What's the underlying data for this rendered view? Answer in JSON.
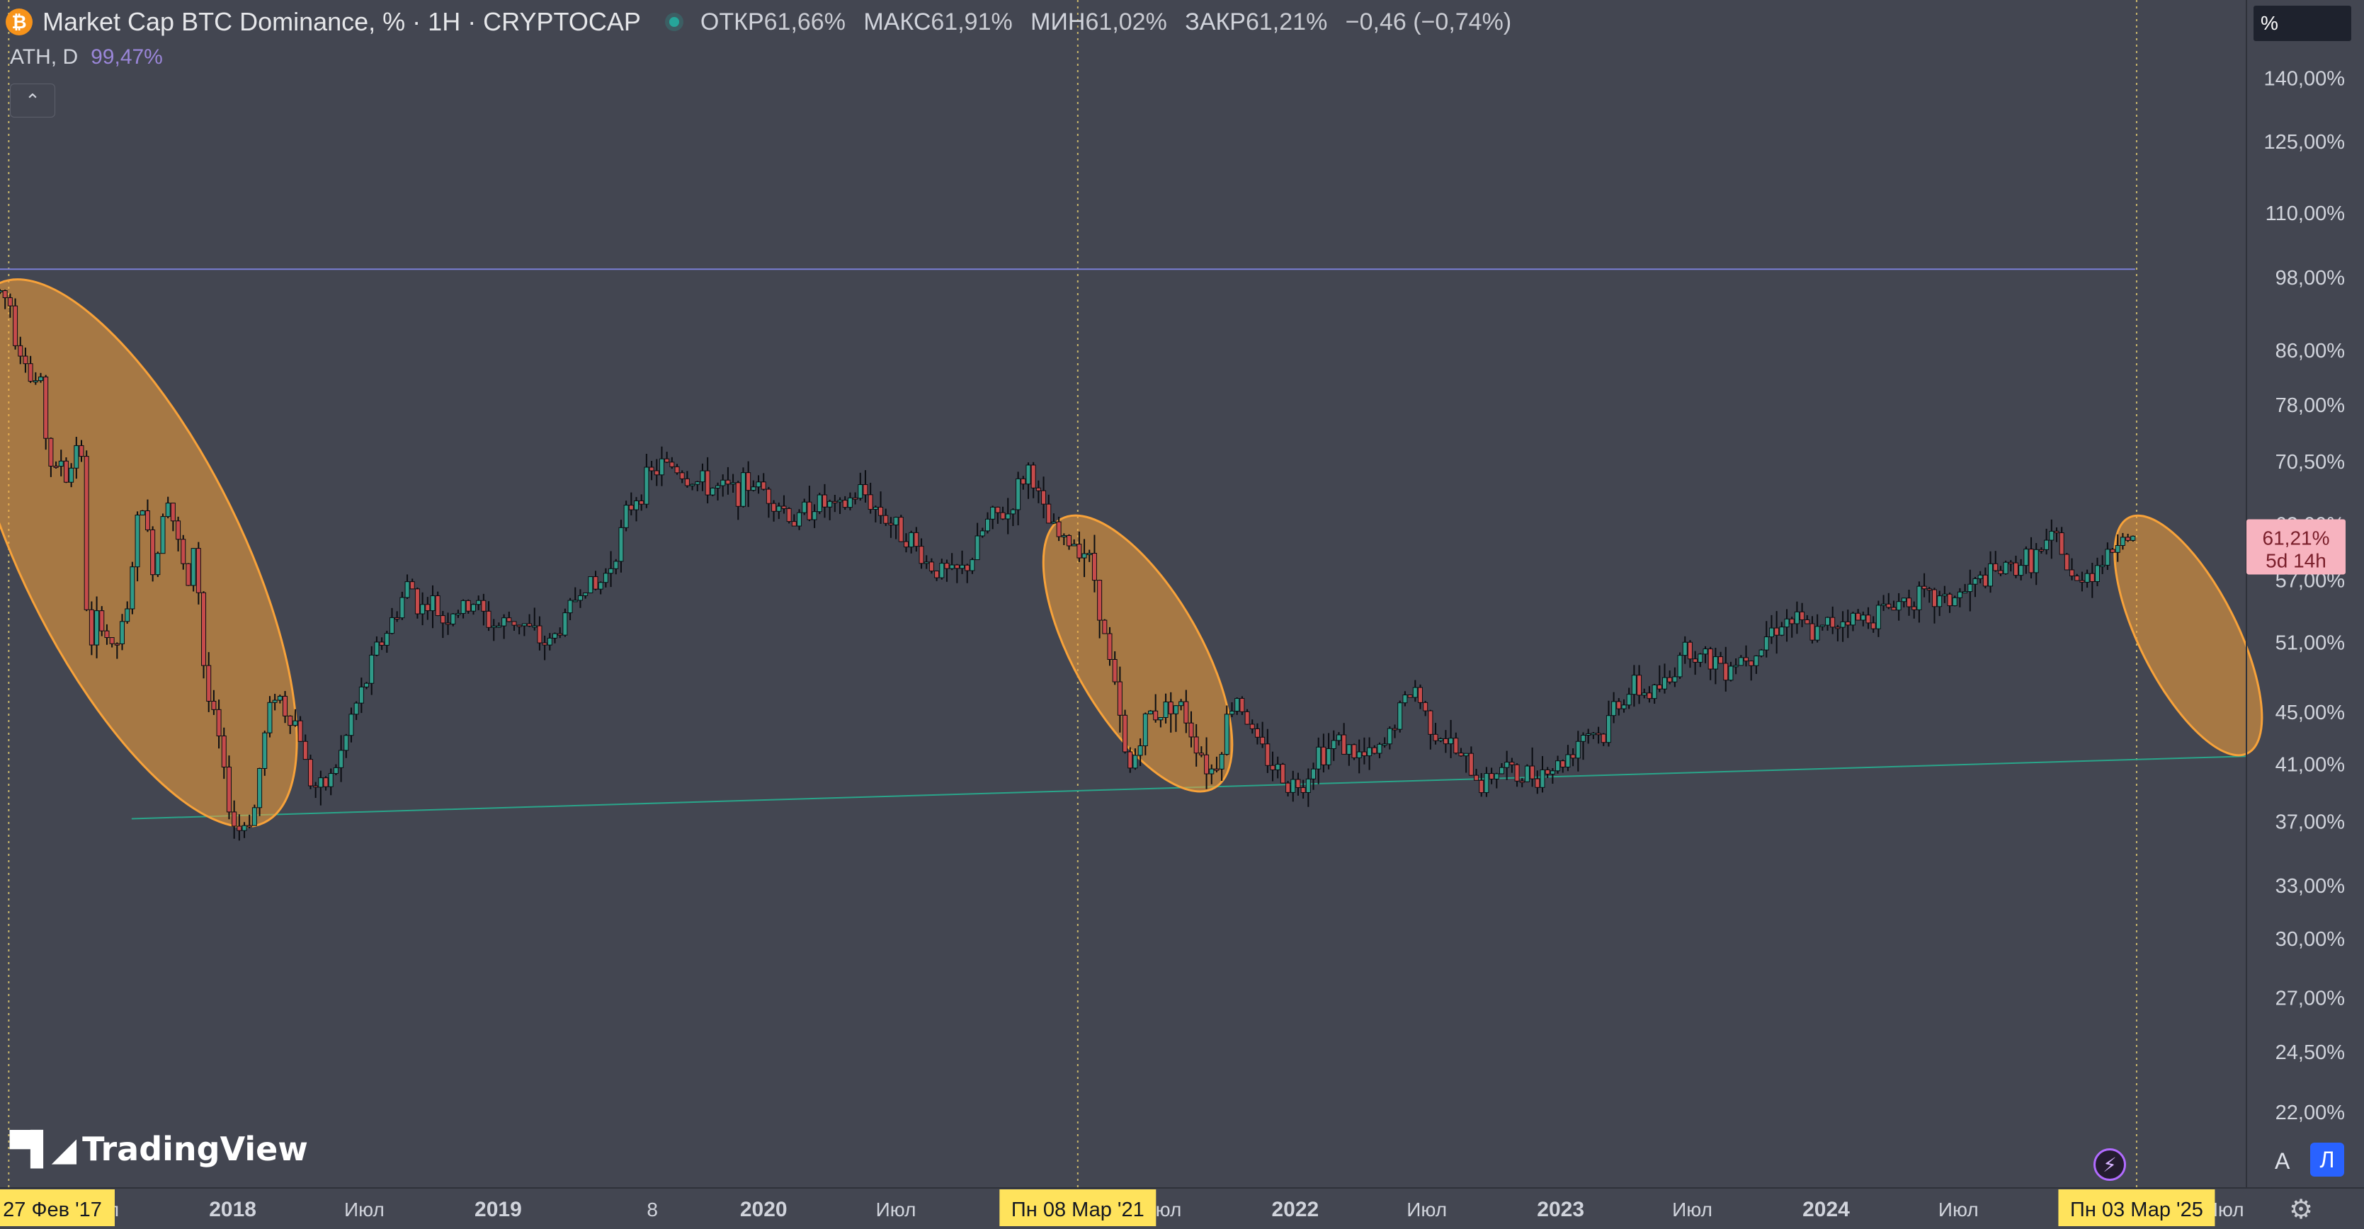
{
  "header": {
    "symbol_icon": "bitcoin-icon",
    "title": "Market Cap BTC Dominance, % · 1H · CRYPTOCAP",
    "ohlc": [
      {
        "key": "ОТКР",
        "value": "61,66%"
      },
      {
        "key": "МАКС",
        "value": "61,91%"
      },
      {
        "key": "МИН",
        "value": "61,02%"
      },
      {
        "key": "ЗАКР",
        "value": "61,21%"
      }
    ],
    "change": "−0,46 (−0,74%)",
    "indicator_label": "ATH, D",
    "indicator_value": "99,47%"
  },
  "toolbar": {
    "scale_unit": "%",
    "auto_label": "A",
    "log_label": "Л"
  },
  "logo": "TradingView",
  "colors": {
    "background": "#434651",
    "up": "#26a69a",
    "down": "#ef5350",
    "ellipse": "#f7a23a",
    "ath_line": "#7b7fd6",
    "trend_line": "#2aa58a",
    "date_highlight": "#ffe35c",
    "price_tag": "#f7b3bf"
  },
  "chart_data": {
    "type": "candlestick",
    "y_scale": "log",
    "ylim": [
      20,
      160
    ],
    "y_ticks": [
      {
        "value": 140,
        "label": "140,00%"
      },
      {
        "value": 125,
        "label": "125,00%"
      },
      {
        "value": 110,
        "label": "110,00%"
      },
      {
        "value": 98,
        "label": "98,00%"
      },
      {
        "value": 86,
        "label": "86,00%"
      },
      {
        "value": 78,
        "label": "78,00%"
      },
      {
        "value": 70.5,
        "label": "70,50%"
      },
      {
        "value": 63,
        "label": "63,00%"
      },
      {
        "value": 57,
        "label": "57,00%"
      },
      {
        "value": 51,
        "label": "51,00%"
      },
      {
        "value": 45,
        "label": "45,00%"
      },
      {
        "value": 41,
        "label": "41,00%"
      },
      {
        "value": 37,
        "label": "37,00%"
      },
      {
        "value": 33,
        "label": "33,00%"
      },
      {
        "value": 30,
        "label": "30,00%"
      },
      {
        "value": 27,
        "label": "27,00%"
      },
      {
        "value": 24.5,
        "label": "24,50%"
      },
      {
        "value": 22,
        "label": "22,00%"
      }
    ],
    "x_domain": [
      "2017-02-15",
      "2025-08-01"
    ],
    "x_ticks": [
      {
        "date": "2017-07-01",
        "label": "Июл",
        "bold": false
      },
      {
        "date": "2018-01-01",
        "label": "2018",
        "bold": true
      },
      {
        "date": "2018-07-01",
        "label": "Июл",
        "bold": false
      },
      {
        "date": "2019-01-01",
        "label": "2019",
        "bold": true
      },
      {
        "date": "2019-08-01",
        "label": "8",
        "bold": false
      },
      {
        "date": "2020-01-01",
        "label": "2020",
        "bold": true
      },
      {
        "date": "2020-07-01",
        "label": "Июл",
        "bold": false
      },
      {
        "date": "2021-07-01",
        "label": "Июл",
        "bold": false
      },
      {
        "date": "2022-01-01",
        "label": "2022",
        "bold": true
      },
      {
        "date": "2022-07-01",
        "label": "Июл",
        "bold": false
      },
      {
        "date": "2023-01-01",
        "label": "2023",
        "bold": true
      },
      {
        "date": "2023-07-01",
        "label": "Июл",
        "bold": false
      },
      {
        "date": "2024-01-01",
        "label": "2024",
        "bold": true
      },
      {
        "date": "2024-07-01",
        "label": "Июл",
        "bold": false
      },
      {
        "date": "2025-07-01",
        "label": "Июл",
        "bold": false
      }
    ],
    "markers": [
      {
        "date": "2017-02-27",
        "label": "27 Фев '17"
      },
      {
        "date": "2021-03-08",
        "label": "Пн 08 Мар '21"
      },
      {
        "date": "2025-03-03",
        "label": "Пн 03 Мар '25"
      }
    ],
    "price_tag": {
      "value": 61.21,
      "label": "61,21%",
      "countdown": "5d 14h"
    },
    "ath_line": {
      "value": 99.47,
      "from": "2017-02-15",
      "to": "2025-03-01"
    },
    "trend_line": {
      "from": {
        "date": "2017-08-15",
        "value": 37.2
      },
      "to": {
        "date": "2025-08-01",
        "value": 41.6
      }
    },
    "ellipses": [
      {
        "from": "2017-02-16",
        "to": "2018-02-10",
        "high": 96,
        "low": 37.3,
        "tilt": "down"
      },
      {
        "from": "2021-02-15",
        "to": "2021-09-10",
        "high": 63.3,
        "low": 39.5,
        "tilt": "down"
      },
      {
        "from": "2025-02-22",
        "to": "2025-08-01",
        "high": 63.5,
        "low": 42.0,
        "tilt": "down"
      }
    ],
    "series": [
      {
        "name": "Market Cap BTC Dominance",
        "points": [
          [
            "2017-02-15",
            95.5
          ],
          [
            "2017-03-01",
            93.5
          ],
          [
            "2017-03-10",
            87
          ],
          [
            "2017-03-20",
            86
          ],
          [
            "2017-04-01",
            80
          ],
          [
            "2017-04-10",
            83
          ],
          [
            "2017-04-20",
            73
          ],
          [
            "2017-05-01",
            68
          ],
          [
            "2017-05-08",
            72
          ],
          [
            "2017-05-15",
            68
          ],
          [
            "2017-05-25",
            70
          ],
          [
            "2017-06-05",
            76
          ],
          [
            "2017-06-12",
            56
          ],
          [
            "2017-06-20",
            50
          ],
          [
            "2017-07-01",
            54
          ],
          [
            "2017-07-10",
            52
          ],
          [
            "2017-07-20",
            50
          ],
          [
            "2017-08-01",
            52
          ],
          [
            "2017-08-10",
            54
          ],
          [
            "2017-08-20",
            62
          ],
          [
            "2017-09-01",
            66
          ],
          [
            "2017-09-10",
            58
          ],
          [
            "2017-09-20",
            60
          ],
          [
            "2017-10-01",
            68
          ],
          [
            "2017-10-10",
            64
          ],
          [
            "2017-10-20",
            60
          ],
          [
            "2017-11-01",
            56
          ],
          [
            "2017-11-10",
            62
          ],
          [
            "2017-11-20",
            50
          ],
          [
            "2017-12-01",
            45
          ],
          [
            "2017-12-10",
            44
          ],
          [
            "2017-12-20",
            40
          ],
          [
            "2018-01-01",
            37
          ],
          [
            "2018-01-10",
            36.5
          ],
          [
            "2018-01-20",
            37
          ],
          [
            "2018-02-01",
            38
          ],
          [
            "2018-02-10",
            42
          ],
          [
            "2018-02-20",
            45
          ],
          [
            "2018-03-01",
            47
          ],
          [
            "2018-03-15",
            45
          ],
          [
            "2018-04-01",
            44
          ],
          [
            "2018-04-15",
            40
          ],
          [
            "2018-05-01",
            39
          ],
          [
            "2018-05-15",
            40
          ],
          [
            "2018-06-01",
            42
          ],
          [
            "2018-06-15",
            45
          ],
          [
            "2018-07-01",
            47
          ],
          [
            "2018-07-15",
            50
          ],
          [
            "2018-08-01",
            52
          ],
          [
            "2018-08-15",
            54
          ],
          [
            "2018-09-01",
            57
          ],
          [
            "2018-09-15",
            54
          ],
          [
            "2018-10-01",
            55
          ],
          [
            "2018-10-15",
            53
          ],
          [
            "2018-11-01",
            54
          ],
          [
            "2018-11-15",
            54
          ],
          [
            "2018-12-01",
            55
          ],
          [
            "2018-12-15",
            53
          ],
          [
            "2019-01-01",
            52.5
          ],
          [
            "2019-01-15",
            53
          ],
          [
            "2019-02-01",
            53
          ],
          [
            "2019-02-15",
            52
          ],
          [
            "2019-03-01",
            51
          ],
          [
            "2019-03-15",
            51
          ],
          [
            "2019-04-01",
            53
          ],
          [
            "2019-04-15",
            55
          ],
          [
            "2019-05-01",
            57
          ],
          [
            "2019-05-15",
            56
          ],
          [
            "2019-06-01",
            58
          ],
          [
            "2019-06-15",
            61
          ],
          [
            "2019-07-01",
            65
          ],
          [
            "2019-07-15",
            67
          ],
          [
            "2019-08-01",
            69
          ],
          [
            "2019-08-15",
            70
          ],
          [
            "2019-09-01",
            70
          ],
          [
            "2019-09-15",
            68.5
          ],
          [
            "2019-10-01",
            68
          ],
          [
            "2019-10-15",
            67.5
          ],
          [
            "2019-11-01",
            67
          ],
          [
            "2019-11-15",
            67
          ],
          [
            "2019-12-01",
            67
          ],
          [
            "2019-12-15",
            68
          ],
          [
            "2020-01-01",
            67
          ],
          [
            "2020-01-15",
            66
          ],
          [
            "2020-02-01",
            64.5
          ],
          [
            "2020-02-15",
            63
          ],
          [
            "2020-03-01",
            65
          ],
          [
            "2020-03-15",
            65.5
          ],
          [
            "2020-04-01",
            65
          ],
          [
            "2020-04-15",
            64.5
          ],
          [
            "2020-05-01",
            66
          ],
          [
            "2020-05-15",
            67
          ],
          [
            "2020-06-01",
            65
          ],
          [
            "2020-06-15",
            64
          ],
          [
            "2020-07-01",
            62.5
          ],
          [
            "2020-07-15",
            62
          ],
          [
            "2020-08-01",
            60
          ],
          [
            "2020-08-15",
            58.5
          ],
          [
            "2020-09-01",
            58
          ],
          [
            "2020-09-15",
            57.5
          ],
          [
            "2020-10-01",
            58
          ],
          [
            "2020-10-15",
            59.5
          ],
          [
            "2020-11-01",
            63
          ],
          [
            "2020-11-15",
            64
          ],
          [
            "2020-12-01",
            64
          ],
          [
            "2020-12-15",
            67
          ],
          [
            "2021-01-01",
            70
          ],
          [
            "2021-01-10",
            67
          ],
          [
            "2021-01-20",
            64
          ],
          [
            "2021-02-01",
            62.5
          ],
          [
            "2021-02-15",
            61
          ],
          [
            "2021-03-01",
            61
          ],
          [
            "2021-03-08",
            61
          ],
          [
            "2021-03-20",
            60
          ],
          [
            "2021-04-01",
            57
          ],
          [
            "2021-04-15",
            51
          ],
          [
            "2021-05-01",
            46
          ],
          [
            "2021-05-10",
            42
          ],
          [
            "2021-05-20",
            40.5
          ],
          [
            "2021-06-01",
            43
          ],
          [
            "2021-06-15",
            45
          ],
          [
            "2021-07-01",
            45
          ],
          [
            "2021-07-15",
            46
          ],
          [
            "2021-08-01",
            45
          ],
          [
            "2021-08-15",
            43
          ],
          [
            "2021-09-01",
            41
          ],
          [
            "2021-09-10",
            40.5
          ],
          [
            "2021-09-20",
            42
          ],
          [
            "2021-10-01",
            45
          ],
          [
            "2021-10-15",
            46.5
          ],
          [
            "2021-11-01",
            43.5
          ],
          [
            "2021-11-15",
            42
          ],
          [
            "2021-12-01",
            41
          ],
          [
            "2021-12-15",
            40
          ],
          [
            "2022-01-01",
            39.5
          ],
          [
            "2022-01-15",
            40
          ],
          [
            "2022-02-01",
            42
          ],
          [
            "2022-02-15",
            42
          ],
          [
            "2022-03-01",
            43
          ],
          [
            "2022-03-15",
            42
          ],
          [
            "2022-04-01",
            41.5
          ],
          [
            "2022-04-15",
            41.5
          ],
          [
            "2022-05-01",
            42
          ],
          [
            "2022-05-15",
            44
          ],
          [
            "2022-06-01",
            46
          ],
          [
            "2022-06-15",
            47
          ],
          [
            "2022-07-01",
            44.5
          ],
          [
            "2022-07-15",
            43.5
          ],
          [
            "2022-08-01",
            42.5
          ],
          [
            "2022-08-15",
            41.5
          ],
          [
            "2022-09-01",
            40.5
          ],
          [
            "2022-09-15",
            39.5
          ],
          [
            "2022-10-01",
            40.5
          ],
          [
            "2022-10-15",
            41
          ],
          [
            "2022-11-01",
            40
          ],
          [
            "2022-11-15",
            40.2
          ],
          [
            "2022-12-01",
            40.5
          ],
          [
            "2022-12-15",
            40.7
          ],
          [
            "2023-01-01",
            41
          ],
          [
            "2023-01-15",
            42
          ],
          [
            "2023-02-01",
            43.5
          ],
          [
            "2023-02-15",
            43.5
          ],
          [
            "2023-03-01",
            43
          ],
          [
            "2023-03-15",
            45.5
          ],
          [
            "2023-04-01",
            46.5
          ],
          [
            "2023-04-15",
            47
          ],
          [
            "2023-05-01",
            46.5
          ],
          [
            "2023-05-15",
            47
          ],
          [
            "2023-06-01",
            47.5
          ],
          [
            "2023-06-15",
            50.5
          ],
          [
            "2023-07-01",
            50.5
          ],
          [
            "2023-07-15",
            49.5
          ],
          [
            "2023-08-01",
            49.5
          ],
          [
            "2023-08-15",
            49
          ],
          [
            "2023-09-01",
            49.5
          ],
          [
            "2023-09-15",
            50
          ],
          [
            "2023-10-01",
            50.5
          ],
          [
            "2023-10-15",
            52
          ],
          [
            "2023-11-01",
            53
          ],
          [
            "2023-11-15",
            53
          ],
          [
            "2023-12-01",
            52.5
          ],
          [
            "2023-12-15",
            51.5
          ],
          [
            "2024-01-01",
            52.5
          ],
          [
            "2024-01-15",
            53
          ],
          [
            "2024-02-01",
            53.5
          ],
          [
            "2024-02-15",
            53
          ],
          [
            "2024-03-01",
            53.5
          ],
          [
            "2024-03-15",
            54
          ],
          [
            "2024-04-01",
            54.5
          ],
          [
            "2024-04-15",
            55
          ],
          [
            "2024-05-01",
            55.5
          ],
          [
            "2024-05-15",
            55
          ],
          [
            "2024-06-01",
            55
          ],
          [
            "2024-06-15",
            55
          ],
          [
            "2024-07-01",
            55.5
          ],
          [
            "2024-07-15",
            56
          ],
          [
            "2024-08-01",
            57
          ],
          [
            "2024-08-15",
            57.5
          ],
          [
            "2024-09-01",
            58
          ],
          [
            "2024-09-15",
            58.5
          ],
          [
            "2024-10-01",
            59
          ],
          [
            "2024-10-15",
            59.5
          ],
          [
            "2024-11-01",
            60.5
          ],
          [
            "2024-11-15",
            61.5
          ],
          [
            "2024-12-01",
            57
          ],
          [
            "2024-12-10",
            56.5
          ],
          [
            "2024-12-20",
            58
          ],
          [
            "2025-01-01",
            58
          ],
          [
            "2025-01-15",
            59
          ],
          [
            "2025-02-01",
            60.5
          ],
          [
            "2025-02-10",
            62.5
          ],
          [
            "2025-02-20",
            61.5
          ],
          [
            "2025-03-01",
            61.2
          ]
        ]
      }
    ]
  }
}
